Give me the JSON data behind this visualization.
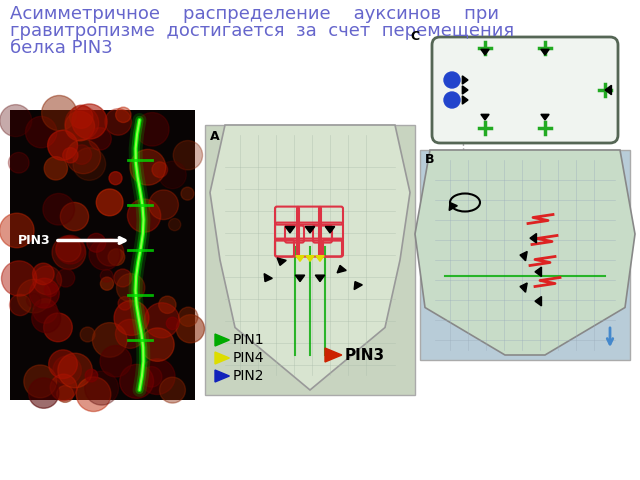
{
  "title_color": "#6666cc",
  "title_fontsize": 13,
  "bg_color": "#ffffff",
  "title_lines": [
    "Асимметричное    распределение    ауксинов    при",
    "гравитропизме  достигается  за  счет  перемещения",
    "белка PIN3"
  ]
}
